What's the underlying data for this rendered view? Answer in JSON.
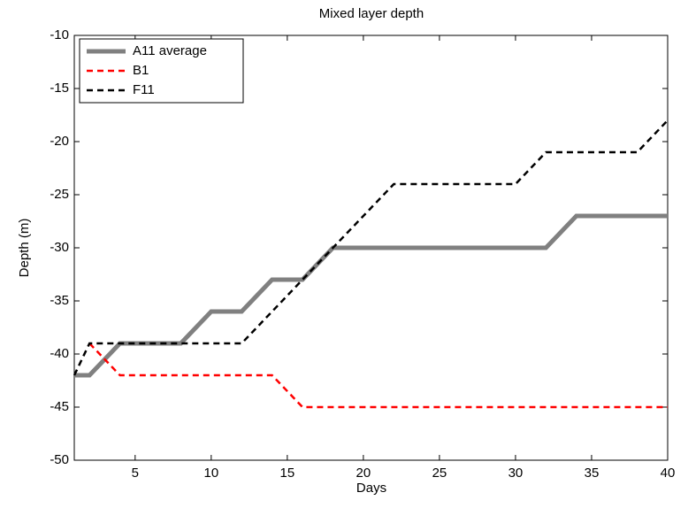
{
  "chart_data": {
    "type": "line",
    "title": "Mixed layer depth",
    "x_label": "Days",
    "y_label": "Depth (m)",
    "xlim": [
      1,
      40
    ],
    "ylim": [
      -50,
      -10
    ],
    "xticks": [
      5,
      10,
      15,
      20,
      25,
      30,
      35,
      40
    ],
    "yticks": [
      -10,
      -15,
      -20,
      -25,
      -30,
      -35,
      -40,
      -45,
      -50
    ],
    "legend": "upper left",
    "series": [
      {
        "name": "A11 average",
        "color": "#808080",
        "dash": "solid",
        "width": 5,
        "x": [
          1,
          2,
          4,
          8,
          10,
          12,
          14,
          16,
          18,
          32,
          34,
          40
        ],
        "values": [
          -42,
          -42,
          -39,
          -39,
          -36,
          -36,
          -33,
          -33,
          -30,
          -30,
          -27,
          -27
        ]
      },
      {
        "name": "B1",
        "color": "#ff0000",
        "dash": "dashed",
        "width": 2.5,
        "x": [
          2,
          4,
          14,
          16,
          40
        ],
        "values": [
          -39,
          -42,
          -42,
          -45,
          -45
        ]
      },
      {
        "name": "F11",
        "color": "#000000",
        "dash": "dashed",
        "width": 2.5,
        "x": [
          1,
          2,
          12,
          22,
          30,
          32,
          38,
          40
        ],
        "values": [
          -42,
          -39,
          -39,
          -24,
          -24,
          -21,
          -21,
          -18
        ]
      }
    ]
  }
}
